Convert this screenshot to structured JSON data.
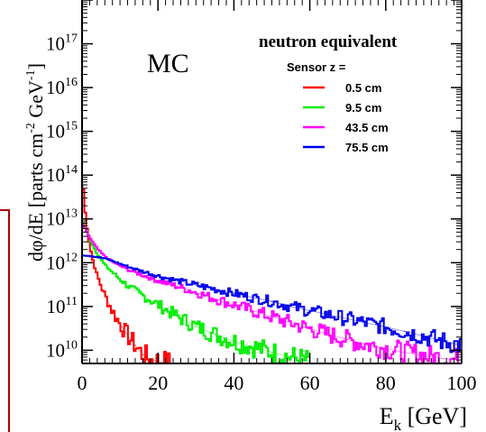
{
  "chart_data": {
    "type": "line",
    "title": "",
    "xlabel": "E_k [GeV]",
    "xlabel_main": "E",
    "xlabel_sub": "k",
    "xlabel_unit": " [GeV]",
    "ylabel": "dφ/dE [parts cm^-2 GeV^-1]",
    "ylabel_main": "dφ/dE [parts cm",
    "ylabel_exp1": "-2",
    "ylabel_mid": " GeV",
    "ylabel_exp2": "-1",
    "ylabel_end": "]",
    "xlim": [
      0,
      100
    ],
    "ylim": [
      5000000000.0,
      1e+18
    ],
    "yscale": "log",
    "x_ticks": [
      0,
      20,
      40,
      60,
      80,
      100
    ],
    "x_tick_labels": [
      "0",
      "20",
      "40",
      "60",
      "80",
      "100"
    ],
    "y_tick_exponents": [
      10,
      11,
      12,
      13,
      14,
      15,
      16,
      17
    ],
    "y_tick_base": "10",
    "annotation": "MC",
    "legend": {
      "title": "neutron equivalent",
      "subtitle": "Sensor z =",
      "placement": "top-right"
    },
    "series": [
      {
        "name": "0.5 cm",
        "color": "#ff0000",
        "x": [
          0.1,
          0.5,
          1,
          2,
          3,
          4,
          5,
          6,
          8,
          10,
          12,
          14,
          16,
          18,
          20,
          22,
          24
        ],
        "y": [
          100000000000000.0,
          30000000000000.0,
          10000000000000.0,
          2500000000000.0,
          1000000000000.0,
          500000000000.0,
          300000000000.0,
          180000000000.0,
          80000000000.0,
          40000000000.0,
          22000000000.0,
          13000000000.0,
          8000000000.0,
          6000000000.0,
          5500000000.0,
          5200000000.0,
          5000000000.0
        ]
      },
      {
        "name": "9.5 cm",
        "color": "#00ee00",
        "x": [
          0,
          1,
          2,
          3,
          4,
          5,
          6,
          8,
          10,
          12,
          15,
          20,
          25,
          30,
          35,
          40,
          45,
          50,
          55,
          60
        ],
        "y": [
          9000000000000.0,
          6000000000000.0,
          3500000000000.0,
          2300000000000.0,
          1600000000000.0,
          1200000000000.0,
          900000000000.0,
          600000000000.0,
          420000000000.0,
          300000000000.0,
          200000000000.0,
          110000000000.0,
          60000000000.0,
          35000000000.0,
          23000000000.0,
          16000000000.0,
          12000000000.0,
          9000000000.0,
          7000000000.0,
          5500000000.0
        ]
      },
      {
        "name": "43.5 cm",
        "color": "#ff00ff",
        "x": [
          0,
          1,
          2,
          3,
          4,
          5,
          6,
          8,
          10,
          12,
          15,
          20,
          25,
          30,
          35,
          40,
          45,
          50,
          55,
          60,
          65,
          70,
          75,
          80,
          85,
          90,
          95,
          100
        ],
        "y": [
          8000000000000.0,
          5500000000000.0,
          3800000000000.0,
          2800000000000.0,
          2100000000000.0,
          1700000000000.0,
          1400000000000.0,
          1050000000000.0,
          850000000000.0,
          700000000000.0,
          560000000000.0,
          390000000000.0,
          290000000000.0,
          210000000000.0,
          150000000000.0,
          110000000000.0,
          80000000000.0,
          58000000000.0,
          42000000000.0,
          31000000000.0,
          23000000000.0,
          17500000000.0,
          13500000000.0,
          11000000000.0,
          9000000000.0,
          7500000000.0,
          6500000000.0,
          6000000000.0
        ]
      },
      {
        "name": "75.5 cm",
        "color": "#0000ee",
        "x": [
          0,
          2,
          4,
          6,
          8,
          10,
          12,
          15,
          20,
          25,
          30,
          35,
          40,
          45,
          50,
          55,
          60,
          65,
          70,
          75,
          80,
          85,
          90,
          95,
          100
        ],
        "y": [
          1500000000000.0,
          1450000000000.0,
          1350000000000.0,
          1250000000000.0,
          1100000000000.0,
          950000000000.0,
          820000000000.0,
          670000000000.0,
          500000000000.0,
          390000000000.0,
          310000000000.0,
          250000000000.0,
          200000000000.0,
          160000000000.0,
          130000000000.0,
          100000000000.0,
          80000000000.0,
          65000000000.0,
          52000000000.0,
          42000000000.0,
          34000000000.0,
          27000000000.0,
          21000000000.0,
          16000000000.0,
          13000000000.0
        ]
      }
    ]
  }
}
